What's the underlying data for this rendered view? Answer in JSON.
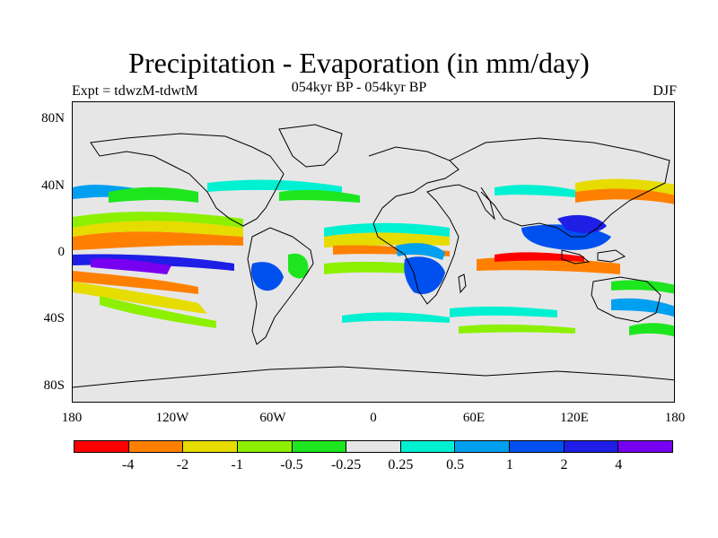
{
  "title": "Precipitation - Evaporation (in mm/day)",
  "subtitle": "054kyr BP - 054kyr BP",
  "experiment": "Expt = tdwzM-tdwtM",
  "season": "DJF",
  "y_axis_labels": [
    "80N",
    "40N",
    "0",
    "40S",
    "80S"
  ],
  "x_axis_labels": [
    "180",
    "120W",
    "60W",
    "0",
    "60E",
    "120E",
    "180"
  ],
  "colorbar": {
    "colors": [
      "#ff0000",
      "#ff8000",
      "#e6dc00",
      "#8cf000",
      "#1ee61e",
      "#e6e6e6",
      "#00f0d2",
      "#00a0f0",
      "#0050f0",
      "#1e1ee6",
      "#7800f0"
    ],
    "labels": [
      "-4",
      "-2",
      "-1",
      "-0.5",
      "-0.25",
      "0.25",
      "0.5",
      "1",
      "2",
      "4"
    ]
  }
}
